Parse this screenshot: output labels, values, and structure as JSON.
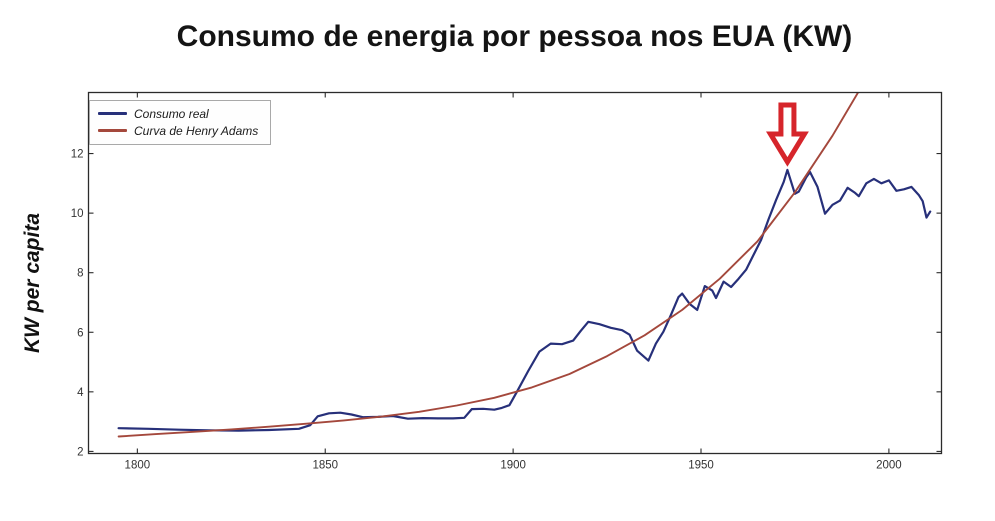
{
  "title": "Consumo de energia por pessoa nos EUA (KW)",
  "ylabel": "KW per capita",
  "legend": {
    "items": [
      {
        "label": "Consumo real",
        "color": "#27307a"
      },
      {
        "label": "Curva de Henry Adams",
        "color": "#a4483c"
      }
    ]
  },
  "chart_data": {
    "type": "line",
    "title": "Consumo de energia por pessoa nos EUA (KW)",
    "xlabel": "",
    "ylabel": "KW per capita",
    "xlim": [
      1787,
      2014
    ],
    "ylim": [
      1.93,
      14.05
    ],
    "x_ticks": [
      1800,
      1850,
      1900,
      1950,
      2000
    ],
    "y_ticks": [
      2,
      4,
      6,
      8,
      10,
      12
    ],
    "grid": false,
    "legend_position": "upper-left",
    "axis_color": "#2b2b2b",
    "tick_label_color": "#333333",
    "series": [
      {
        "name": "Consumo real",
        "color": "#27307a",
        "width": 2.2,
        "points": [
          [
            1795,
            2.78
          ],
          [
            1803,
            2.76
          ],
          [
            1811,
            2.73
          ],
          [
            1819,
            2.71
          ],
          [
            1827,
            2.7
          ],
          [
            1835,
            2.72
          ],
          [
            1843,
            2.76
          ],
          [
            1846,
            2.88
          ],
          [
            1848,
            3.18
          ],
          [
            1851,
            3.28
          ],
          [
            1854,
            3.3
          ],
          [
            1857,
            3.24
          ],
          [
            1860,
            3.15
          ],
          [
            1864,
            3.16
          ],
          [
            1868,
            3.19
          ],
          [
            1872,
            3.1
          ],
          [
            1876,
            3.12
          ],
          [
            1880,
            3.11
          ],
          [
            1884,
            3.11
          ],
          [
            1887,
            3.13
          ],
          [
            1889,
            3.42
          ],
          [
            1892,
            3.43
          ],
          [
            1895,
            3.4
          ],
          [
            1897,
            3.46
          ],
          [
            1899,
            3.55
          ],
          [
            1901,
            4.0
          ],
          [
            1904,
            4.7
          ],
          [
            1907,
            5.35
          ],
          [
            1910,
            5.62
          ],
          [
            1913,
            5.6
          ],
          [
            1916,
            5.72
          ],
          [
            1918,
            6.05
          ],
          [
            1920,
            6.35
          ],
          [
            1923,
            6.27
          ],
          [
            1926,
            6.15
          ],
          [
            1929,
            6.07
          ],
          [
            1931,
            5.92
          ],
          [
            1933,
            5.38
          ],
          [
            1936,
            5.05
          ],
          [
            1938,
            5.62
          ],
          [
            1940,
            6.02
          ],
          [
            1942,
            6.58
          ],
          [
            1944,
            7.18
          ],
          [
            1945,
            7.3
          ],
          [
            1947,
            6.95
          ],
          [
            1949,
            6.75
          ],
          [
            1951,
            7.55
          ],
          [
            1953,
            7.4
          ],
          [
            1954,
            7.15
          ],
          [
            1956,
            7.7
          ],
          [
            1958,
            7.52
          ],
          [
            1960,
            7.8
          ],
          [
            1962,
            8.1
          ],
          [
            1964,
            8.6
          ],
          [
            1966,
            9.1
          ],
          [
            1968,
            9.8
          ],
          [
            1970,
            10.45
          ],
          [
            1972,
            11.05
          ],
          [
            1973,
            11.45
          ],
          [
            1975,
            10.65
          ],
          [
            1976,
            10.72
          ],
          [
            1978,
            11.2
          ],
          [
            1979,
            11.38
          ],
          [
            1981,
            10.88
          ],
          [
            1983,
            9.98
          ],
          [
            1985,
            10.28
          ],
          [
            1987,
            10.42
          ],
          [
            1989,
            10.85
          ],
          [
            1991,
            10.68
          ],
          [
            1992,
            10.57
          ],
          [
            1994,
            11.0
          ],
          [
            1996,
            11.15
          ],
          [
            1998,
            11.0
          ],
          [
            2000,
            11.1
          ],
          [
            2002,
            10.75
          ],
          [
            2004,
            10.8
          ],
          [
            2006,
            10.88
          ],
          [
            2008,
            10.6
          ],
          [
            2009,
            10.4
          ],
          [
            2010,
            9.85
          ],
          [
            2011,
            10.05
          ]
        ]
      },
      {
        "name": "Curva de Henry Adams",
        "color": "#a4483c",
        "width": 1.9,
        "points": [
          [
            1795,
            2.5
          ],
          [
            1805,
            2.58
          ],
          [
            1815,
            2.66
          ],
          [
            1825,
            2.74
          ],
          [
            1835,
            2.83
          ],
          [
            1845,
            2.93
          ],
          [
            1855,
            3.04
          ],
          [
            1865,
            3.17
          ],
          [
            1875,
            3.33
          ],
          [
            1885,
            3.54
          ],
          [
            1895,
            3.8
          ],
          [
            1905,
            4.15
          ],
          [
            1915,
            4.6
          ],
          [
            1925,
            5.2
          ],
          [
            1935,
            5.9
          ],
          [
            1945,
            6.75
          ],
          [
            1955,
            7.8
          ],
          [
            1965,
            9.05
          ],
          [
            1975,
            10.7
          ],
          [
            1985,
            12.6
          ],
          [
            1996,
            14.95
          ]
        ]
      }
    ],
    "annotation": {
      "type": "down-arrow",
      "color": "#d6252b",
      "year": 1973,
      "value": 11.45,
      "meaning": "marks 1970s peak of real consumption"
    }
  }
}
